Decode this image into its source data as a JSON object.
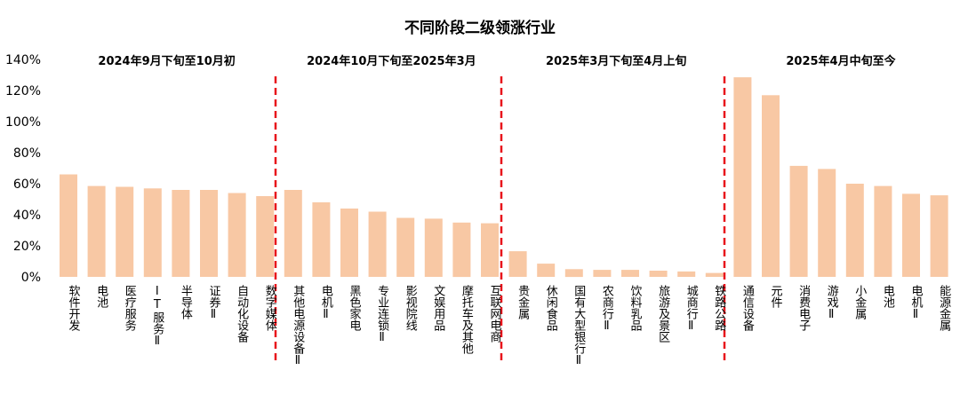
{
  "chart_data": {
    "type": "bar",
    "title": "不同阶段二级领涨行业",
    "xlabel": "",
    "ylabel": "",
    "ylim": [
      0,
      1.4
    ],
    "y_ticks": [
      "0%",
      "20%",
      "40%",
      "60%",
      "80%",
      "100%",
      "120%",
      "140%"
    ],
    "y_tick_values": [
      0,
      0.2,
      0.4,
      0.6,
      0.8,
      1.0,
      1.2,
      1.4
    ],
    "grid": false,
    "colors": {
      "bar": "#F8C8A4",
      "divider": "#E8141B"
    },
    "periods": [
      {
        "label": "2024年9月下旬至10月初",
        "categories": [
          "软件开发",
          "电池",
          "医疗服务",
          "IT服务Ⅱ",
          "半导体",
          "证券Ⅱ",
          "自动化设备",
          "数字媒体"
        ],
        "values": [
          0.66,
          0.585,
          0.58,
          0.57,
          0.56,
          0.56,
          0.54,
          0.52
        ]
      },
      {
        "label": "2024年10月下旬至2025年3月",
        "categories": [
          "其他电源设备Ⅱ",
          "电机Ⅱ",
          "黑色家电",
          "专业连锁Ⅱ",
          "影视院线",
          "文娱用品",
          "摩托车及其他",
          "互联网电商"
        ],
        "values": [
          0.56,
          0.48,
          0.44,
          0.42,
          0.38,
          0.375,
          0.35,
          0.345
        ]
      },
      {
        "label": "2025年3月下旬至4月上旬",
        "categories": [
          "贵金属",
          "休闲食品",
          "国有大型银行Ⅱ",
          "农商行Ⅱ",
          "饮料乳品",
          "旅游及景区",
          "城商行Ⅱ",
          "铁路公路"
        ],
        "values": [
          0.165,
          0.085,
          0.05,
          0.045,
          0.045,
          0.04,
          0.035,
          0.025
        ]
      },
      {
        "label": "2025年4月中旬至今",
        "categories": [
          "通信设备",
          "元件",
          "消费电子",
          "游戏Ⅱ",
          "小金属",
          "电池",
          "电机Ⅱ",
          "能源金属"
        ],
        "values": [
          1.285,
          1.17,
          0.715,
          0.695,
          0.6,
          0.585,
          0.535,
          0.525
        ]
      }
    ]
  }
}
